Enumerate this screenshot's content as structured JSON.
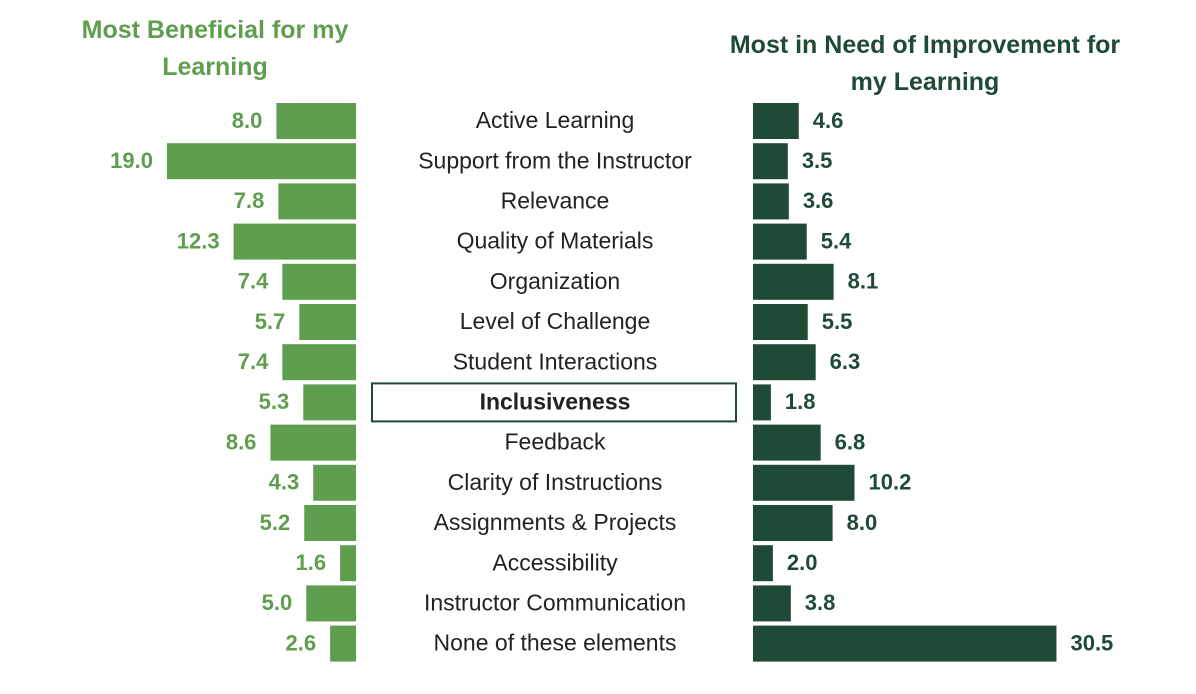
{
  "chart_data": {
    "type": "butterfly",
    "categories": [
      "Active Learning",
      "Support from the Instructor",
      "Relevance",
      "Quality of Materials",
      "Organization",
      "Level of Challenge",
      "Student Interactions",
      "Inclusiveness",
      "Feedback",
      "Clarity of Instructions",
      "Assignments & Projects",
      "Accessibility",
      "Instructor Communication",
      "None of these elements"
    ],
    "highlight": "Inclusiveness",
    "series": [
      {
        "name": "Most Beneficial for my Learning",
        "color": "#5f9e4f",
        "side": "left",
        "values": [
          8.0,
          19.0,
          7.8,
          12.3,
          7.4,
          5.7,
          7.4,
          5.3,
          8.6,
          4.3,
          5.2,
          1.6,
          5.0,
          2.6
        ],
        "value_labels": [
          "8.0",
          "19.0",
          "7.8",
          "12.3",
          "7.4",
          "5.7",
          "7.4",
          "5.3",
          "8.6",
          "4.3",
          "5.2",
          "1.6",
          "5.0",
          "2.6"
        ]
      },
      {
        "name": "Most in Need of Improvement for my Learning",
        "color": "#1f4a35",
        "side": "right",
        "values": [
          4.6,
          3.5,
          3.6,
          5.4,
          8.1,
          5.5,
          6.3,
          1.8,
          6.8,
          10.2,
          8.0,
          2.0,
          3.8,
          30.5
        ],
        "value_labels": [
          "4.6",
          "3.5",
          "3.6",
          "5.4",
          "8.1",
          "5.5",
          "6.3",
          "1.8",
          "6.8",
          "10.2",
          "8.0",
          "2.0",
          "3.8",
          "30.5"
        ]
      }
    ]
  }
}
